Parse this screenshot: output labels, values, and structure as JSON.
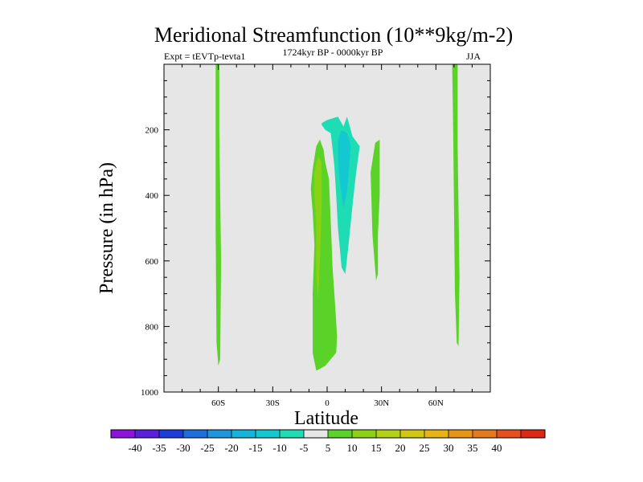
{
  "chart_data": {
    "type": "contour",
    "title": "Meridional Streamfunction (10**9kg/m-2)",
    "left_string": "Expt = tEVTp-tevta1",
    "center_string": "1724kyr BP - 0000kyr BP",
    "right_string": "JJA",
    "xlabel": "Latitude",
    "ylabel": "Pressure (in hPa)",
    "xlim": [
      -90,
      90
    ],
    "ylim": [
      1000,
      0
    ],
    "x_ticks": [
      {
        "value": -60,
        "label": "60S"
      },
      {
        "value": -30,
        "label": "30S"
      },
      {
        "value": 0,
        "label": "0"
      },
      {
        "value": 30,
        "label": "30N"
      },
      {
        "value": 60,
        "label": "60N"
      }
    ],
    "y_ticks": [
      {
        "value": 200,
        "label": "200"
      },
      {
        "value": 400,
        "label": "400"
      },
      {
        "value": 600,
        "label": "600"
      },
      {
        "value": 800,
        "label": "800"
      },
      {
        "value": 1000,
        "label": "1000"
      }
    ],
    "background_color": "#e6e6e6",
    "colorbar": {
      "levels": [
        "-40",
        "-35",
        "-30",
        "-25",
        "-20",
        "-15",
        "-10",
        "-5",
        "5",
        "10",
        "15",
        "20",
        "25",
        "30",
        "35",
        "40"
      ],
      "colors": [
        "#8c14dc",
        "#5a1edc",
        "#1e3cdc",
        "#1e6edc",
        "#1e96dc",
        "#14b4dc",
        "#14c8d2",
        "#1edcb4",
        "#e6e6e6",
        "#5ad228",
        "#8cd214",
        "#b4d214",
        "#d2c814",
        "#e6b414",
        "#e69614",
        "#e6781e",
        "#e6501e",
        "#dc2814"
      ]
    },
    "regions": [
      {
        "name": "positive-cell-60s",
        "level": "5 to 10",
        "color": "#5ad228",
        "points": [
          [
            -61.5,
            0
          ],
          [
            -59.5,
            0
          ],
          [
            -59.5,
            200
          ],
          [
            -58.5,
            600
          ],
          [
            -59,
            900
          ],
          [
            -60,
            920
          ],
          [
            -61,
            850
          ],
          [
            -61.5,
            500
          ],
          [
            -61.5,
            200
          ]
        ]
      },
      {
        "name": "positive-cell-70n",
        "level": "5 to 10",
        "color": "#5ad228",
        "points": [
          [
            69,
            0
          ],
          [
            72,
            0
          ],
          [
            72,
            250
          ],
          [
            73,
            650
          ],
          [
            72.5,
            860
          ],
          [
            71.5,
            850
          ],
          [
            70.5,
            700
          ],
          [
            70,
            450
          ],
          [
            69.5,
            200
          ]
        ]
      },
      {
        "name": "positive-cell-equatorial",
        "level": "5 to 10",
        "color": "#5ad228",
        "points": [
          [
            -8,
            320
          ],
          [
            -6,
            250
          ],
          [
            -4,
            230
          ],
          [
            -2,
            260
          ],
          [
            -1,
            300
          ],
          [
            1,
            350
          ],
          [
            2,
            480
          ],
          [
            3,
            620
          ],
          [
            4.5,
            740
          ],
          [
            5.5,
            830
          ],
          [
            5,
            880
          ],
          [
            2,
            900
          ],
          [
            -1,
            920
          ],
          [
            -6,
            935
          ],
          [
            -8,
            880
          ],
          [
            -8,
            700
          ],
          [
            -7,
            550
          ],
          [
            -8,
            450
          ],
          [
            -9,
            380
          ]
        ]
      },
      {
        "name": "positive-core-equatorial",
        "level": "10 to 15",
        "color": "#8cd214",
        "points": [
          [
            -7,
            330
          ],
          [
            -5,
            280
          ],
          [
            -3,
            300
          ],
          [
            -3,
            430
          ],
          [
            -4,
            600
          ],
          [
            -5,
            720
          ],
          [
            -6,
            640
          ],
          [
            -6,
            480
          ],
          [
            -7,
            400
          ]
        ]
      },
      {
        "name": "positive-cell-25n",
        "level": "5 to 10",
        "color": "#5ad228",
        "points": [
          [
            24,
            330
          ],
          [
            26.5,
            240
          ],
          [
            29,
            230
          ],
          [
            29,
            400
          ],
          [
            28,
            520
          ],
          [
            28,
            640
          ],
          [
            27,
            660
          ],
          [
            25,
            520
          ],
          [
            24.5,
            430
          ]
        ]
      },
      {
        "name": "negative-cell-tropics",
        "level": "-5 to -10",
        "color": "#1edcb4",
        "points": [
          [
            -3,
            180
          ],
          [
            0,
            170
          ],
          [
            6,
            160
          ],
          [
            9,
            190
          ],
          [
            11,
            160
          ],
          [
            14,
            220
          ],
          [
            18,
            250
          ],
          [
            16,
            330
          ],
          [
            14,
            430
          ],
          [
            12,
            540
          ],
          [
            10,
            640
          ],
          [
            8,
            620
          ],
          [
            6,
            500
          ],
          [
            5,
            400
          ],
          [
            4,
            310
          ],
          [
            3,
            260
          ],
          [
            2,
            210
          ],
          [
            -1,
            200
          ],
          [
            -3,
            185
          ]
        ]
      },
      {
        "name": "negative-core-tropics",
        "level": "-10 to -15",
        "color": "#14c8d2",
        "points": [
          [
            6,
            230
          ],
          [
            8,
            200
          ],
          [
            11,
            210
          ],
          [
            13,
            250
          ],
          [
            12,
            320
          ],
          [
            11,
            390
          ],
          [
            9,
            440
          ],
          [
            8,
            400
          ],
          [
            6.5,
            330
          ],
          [
            6,
            280
          ]
        ]
      }
    ]
  }
}
